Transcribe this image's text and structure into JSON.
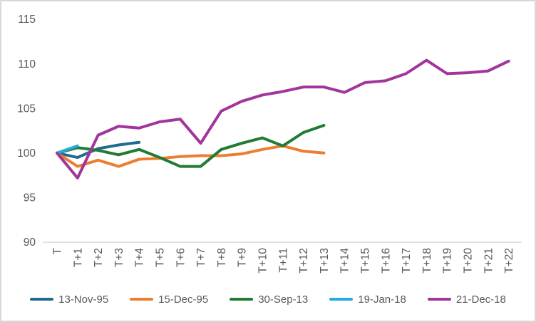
{
  "window": {
    "background": "#ffffff",
    "border_color": "#d8d8d8"
  },
  "colors": {
    "axis_text": "#595959",
    "axis_line": "#d9d9d9"
  },
  "chart_data": {
    "type": "line",
    "title": "",
    "xlabel": "",
    "ylabel": "",
    "x_categories": [
      "T",
      "T+1",
      "T+2",
      "T+3",
      "T+4",
      "T+5",
      "T+6",
      "T+7",
      "T+8",
      "T+9",
      "T+10",
      "T+11",
      "T+12",
      "T+13",
      "T+14",
      "T+15",
      "T+16",
      "T+17",
      "T+18",
      "T+19",
      "T+20",
      "T+21",
      "T+22"
    ],
    "y_ticks": [
      115,
      110,
      105,
      100,
      95,
      90
    ],
    "ylim": [
      90,
      115
    ],
    "grid": false,
    "legend_position": "bottom",
    "series": [
      {
        "name": "13-Nov-95",
        "color": "#236b8e",
        "values": [
          100,
          99.5,
          100.5,
          100.9,
          101.2
        ]
      },
      {
        "name": "15-Dec-95",
        "color": "#ed7d31",
        "values": [
          100,
          98.5,
          99.2,
          98.5,
          99.3,
          99.4,
          99.6,
          99.7,
          99.7,
          99.9,
          100.4,
          100.8,
          100.2,
          100.0
        ]
      },
      {
        "name": "30-Sep-13",
        "color": "#217b33",
        "values": [
          100,
          100.6,
          100.3,
          99.8,
          100.4,
          99.5,
          98.5,
          98.5,
          100.4,
          101.1,
          101.7,
          100.8,
          102.3,
          103.1
        ]
      },
      {
        "name": "19-Jan-18",
        "color": "#29a9e1",
        "values": [
          100,
          100.8
        ]
      },
      {
        "name": "21-Dec-18",
        "color": "#a2359c",
        "values": [
          100,
          97.2,
          102.0,
          103.0,
          102.8,
          103.5,
          103.8,
          101.1,
          104.7,
          105.8,
          106.5,
          106.9,
          107.4,
          107.4,
          106.8,
          107.9,
          108.1,
          108.9,
          110.4,
          108.9,
          109.0,
          109.2,
          110.3
        ]
      }
    ]
  }
}
